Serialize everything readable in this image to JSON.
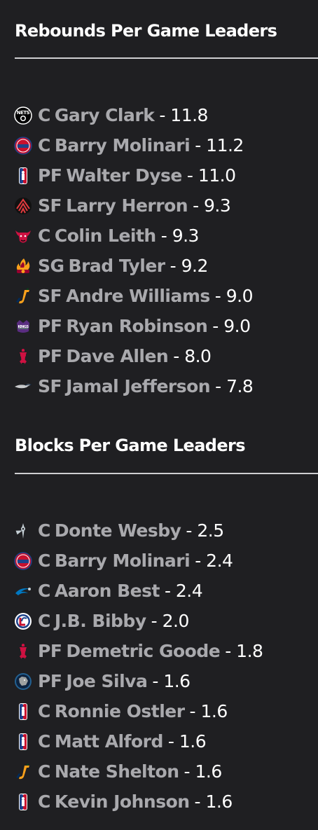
{
  "rebounds": {
    "title": "Rebounds Per Game Leaders",
    "rows": [
      {
        "team": "nets-logo",
        "pos": "C",
        "name": "Gary Clark",
        "value": "- 11.8"
      },
      {
        "team": "pistons-logo",
        "pos": "C",
        "name": "Barry Molinari",
        "value": "- 11.2"
      },
      {
        "team": "nba-logo",
        "pos": "PF",
        "name": "Walter Dyse",
        "value": "- 11.0"
      },
      {
        "team": "trail-blazers-logo",
        "pos": "SF",
        "name": "Larry Herron",
        "value": "- 9.3"
      },
      {
        "team": "bulls-logo",
        "pos": "C",
        "name": "Colin Leith",
        "value": "- 9.3"
      },
      {
        "team": "heat-logo",
        "pos": "SG",
        "name": "Brad Tyler",
        "value": "- 9.2"
      },
      {
        "team": "jazz-logo",
        "pos": "SF",
        "name": "Andre Williams",
        "value": "- 9.0"
      },
      {
        "team": "kings-logo",
        "pos": "PF",
        "name": "Ryan Robinson",
        "value": "- 9.0"
      },
      {
        "team": "rockets-logo",
        "pos": "PF",
        "name": "Dave Allen",
        "value": "- 8.0"
      },
      {
        "team": "pelicans-logo",
        "pos": "SF",
        "name": "Jamal Jefferson",
        "value": "- 7.8"
      }
    ]
  },
  "blocks": {
    "title": "Blocks Per Game Leaders",
    "rows": [
      {
        "team": "spurs-logo",
        "pos": "C",
        "name": "Donte Wesby",
        "value": "- 2.5"
      },
      {
        "team": "pistons-logo",
        "pos": "C",
        "name": "Barry Molinari",
        "value": "- 2.4"
      },
      {
        "team": "magic-logo",
        "pos": "C",
        "name": "Aaron Best",
        "value": "- 2.4"
      },
      {
        "team": "clippers-logo",
        "pos": "C",
        "name": "J.B. Bibby",
        "value": "- 2.0"
      },
      {
        "team": "rockets-logo",
        "pos": "PF",
        "name": "Demetric Goode",
        "value": "- 1.8"
      },
      {
        "team": "timberwolves-logo",
        "pos": "PF",
        "name": "Joe Silva",
        "value": "- 1.6"
      },
      {
        "team": "nba-logo",
        "pos": "C",
        "name": "Ronnie Ostler",
        "value": "- 1.6"
      },
      {
        "team": "nba-logo",
        "pos": "C",
        "name": "Matt Alford",
        "value": "- 1.6"
      },
      {
        "team": "jazz-logo",
        "pos": "C",
        "name": "Nate Shelton",
        "value": "- 1.6"
      },
      {
        "team": "nba-logo",
        "pos": "C",
        "name": "Kevin Johnson",
        "value": "- 1.6"
      }
    ]
  }
}
